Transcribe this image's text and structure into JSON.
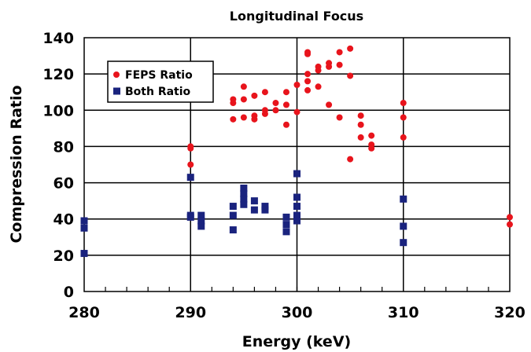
{
  "chart_data": {
    "type": "scatter",
    "title": "Longitudinal Focus",
    "xlabel": "Energy (keV)",
    "ylabel": "Compression Ratio",
    "xlim": [
      280,
      320
    ],
    "ylim": [
      0,
      140
    ],
    "x_ticks": [
      280,
      290,
      300,
      310,
      320
    ],
    "y_ticks": [
      0,
      20,
      40,
      60,
      80,
      100,
      120,
      140
    ],
    "x_major_grid": [
      290,
      300,
      310
    ],
    "y_major_grid": [
      20,
      40,
      60,
      80,
      100,
      120
    ],
    "x_minor_tick_step": 2,
    "legend_position": "top-left",
    "series": [
      {
        "name": "FEPS Ratio",
        "marker": "circle",
        "color": "#e8141c",
        "points": [
          [
            290,
            80
          ],
          [
            290,
            79
          ],
          [
            290,
            70
          ],
          [
            294,
            106
          ],
          [
            294,
            104
          ],
          [
            294,
            95
          ],
          [
            295,
            113
          ],
          [
            295,
            106
          ],
          [
            295,
            96
          ],
          [
            296,
            108
          ],
          [
            296,
            97
          ],
          [
            296,
            95
          ],
          [
            297,
            110
          ],
          [
            297,
            100
          ],
          [
            297,
            98
          ],
          [
            298,
            104
          ],
          [
            298,
            100
          ],
          [
            299,
            110
          ],
          [
            299,
            103
          ],
          [
            299,
            92
          ],
          [
            300,
            114
          ],
          [
            300,
            99
          ],
          [
            301,
            132
          ],
          [
            301,
            131
          ],
          [
            301,
            120
          ],
          [
            301,
            116
          ],
          [
            301,
            111
          ],
          [
            302,
            124
          ],
          [
            302,
            122
          ],
          [
            302,
            113
          ],
          [
            303,
            126
          ],
          [
            303,
            124
          ],
          [
            303,
            103
          ],
          [
            304,
            132
          ],
          [
            304,
            125
          ],
          [
            304,
            96
          ],
          [
            305,
            134
          ],
          [
            305,
            119
          ],
          [
            305,
            73
          ],
          [
            306,
            97
          ],
          [
            306,
            92
          ],
          [
            306,
            85
          ],
          [
            307,
            86
          ],
          [
            307,
            81
          ],
          [
            307,
            79
          ],
          [
            310,
            104
          ],
          [
            310,
            96
          ],
          [
            310,
            85
          ],
          [
            320,
            41
          ],
          [
            320,
            37
          ]
        ]
      },
      {
        "name": "Both Ratio",
        "marker": "square",
        "color": "#1a237e",
        "points": [
          [
            280,
            39
          ],
          [
            280,
            35
          ],
          [
            280,
            21
          ],
          [
            290,
            63
          ],
          [
            290,
            42
          ],
          [
            290,
            41
          ],
          [
            291,
            42
          ],
          [
            291,
            39
          ],
          [
            291,
            36
          ],
          [
            294,
            47
          ],
          [
            294,
            42
          ],
          [
            294,
            34
          ],
          [
            295,
            57
          ],
          [
            295,
            54
          ],
          [
            295,
            51
          ],
          [
            295,
            48
          ],
          [
            296,
            50
          ],
          [
            296,
            45
          ],
          [
            297,
            47
          ],
          [
            297,
            45
          ],
          [
            299,
            41
          ],
          [
            299,
            37
          ],
          [
            299,
            33
          ],
          [
            300,
            65
          ],
          [
            300,
            52
          ],
          [
            300,
            47
          ],
          [
            300,
            42
          ],
          [
            300,
            39
          ],
          [
            310,
            51
          ],
          [
            310,
            36
          ],
          [
            310,
            27
          ]
        ]
      }
    ]
  }
}
